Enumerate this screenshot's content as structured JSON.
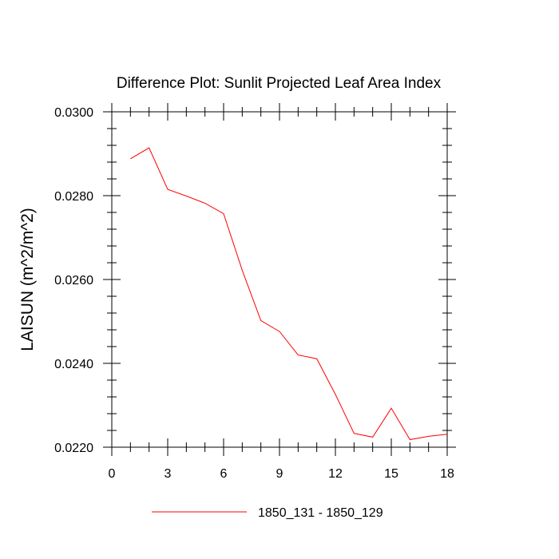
{
  "chart_data": {
    "type": "line",
    "title": "Difference Plot: Sunlit Projected Leaf Area Index",
    "ylabel": "LAISUN  (m^2/m^2)",
    "xlabel": "",
    "xlim": [
      0,
      18
    ],
    "ylim": [
      0.022,
      0.03
    ],
    "xticks": [
      0,
      3,
      6,
      9,
      12,
      15,
      18
    ],
    "xtick_labels": [
      "0",
      "3",
      "6",
      "9",
      "12",
      "15",
      "18"
    ],
    "yticks": [
      0.022,
      0.024,
      0.026,
      0.028,
      0.03
    ],
    "ytick_labels": [
      "0.0220",
      "0.0240",
      "0.0260",
      "0.0280",
      "0.0300"
    ],
    "x": [
      1,
      2,
      3,
      4,
      5,
      6,
      7,
      8,
      9,
      10,
      11,
      12,
      13,
      14,
      15,
      16,
      17,
      18
    ],
    "series": [
      {
        "name": "1850_131 - 1850_129",
        "color": "#ff0000",
        "values": [
          0.02888,
          0.02914,
          0.02815,
          0.02799,
          0.02782,
          0.02757,
          0.02622,
          0.02502,
          0.02476,
          0.0242,
          0.02411,
          0.02326,
          0.02233,
          0.02224,
          0.02293,
          0.02218,
          0.02226,
          0.02231
        ]
      }
    ],
    "legend_position": "bottom-center",
    "grid": false
  }
}
